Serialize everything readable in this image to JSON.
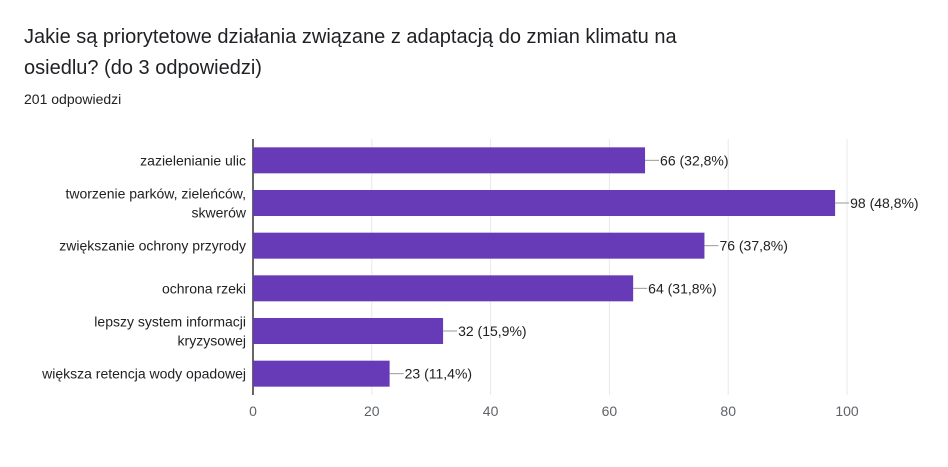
{
  "header": {
    "question": "Jakie są priorytetowe działania związane z adaptacją do zmian klimatu na osiedlu? (do 3 odpowiedzi)",
    "responses": "201 odpowiedzi"
  },
  "chart_data": {
    "type": "bar",
    "orientation": "horizontal",
    "categories": [
      [
        "zazielenianie ulic"
      ],
      [
        "tworzenie parków, zieleńców,",
        "skwerów"
      ],
      [
        "zwiększanie ochrony przyrody"
      ],
      [
        "ochrona rzeki"
      ],
      [
        "lepszy system informacji",
        "kryzysowej"
      ],
      [
        "większa retencja wody opadowej"
      ]
    ],
    "values": [
      66,
      98,
      76,
      64,
      32,
      23
    ],
    "labels": [
      "66 (32,8%)",
      "98 (48,8%)",
      "76 (37,8%)",
      "64 (31,8%)",
      "32 (15,9%)",
      "23 (11,4%)"
    ],
    "xlim": [
      0,
      100
    ],
    "xticks": [
      0,
      20,
      40,
      60,
      80,
      100
    ],
    "grid": true,
    "colors": {
      "bar": "#673ab7",
      "grid": "#e8e8e8",
      "axis": "#333333",
      "text": "#202124",
      "tick": "#5f6368"
    }
  }
}
